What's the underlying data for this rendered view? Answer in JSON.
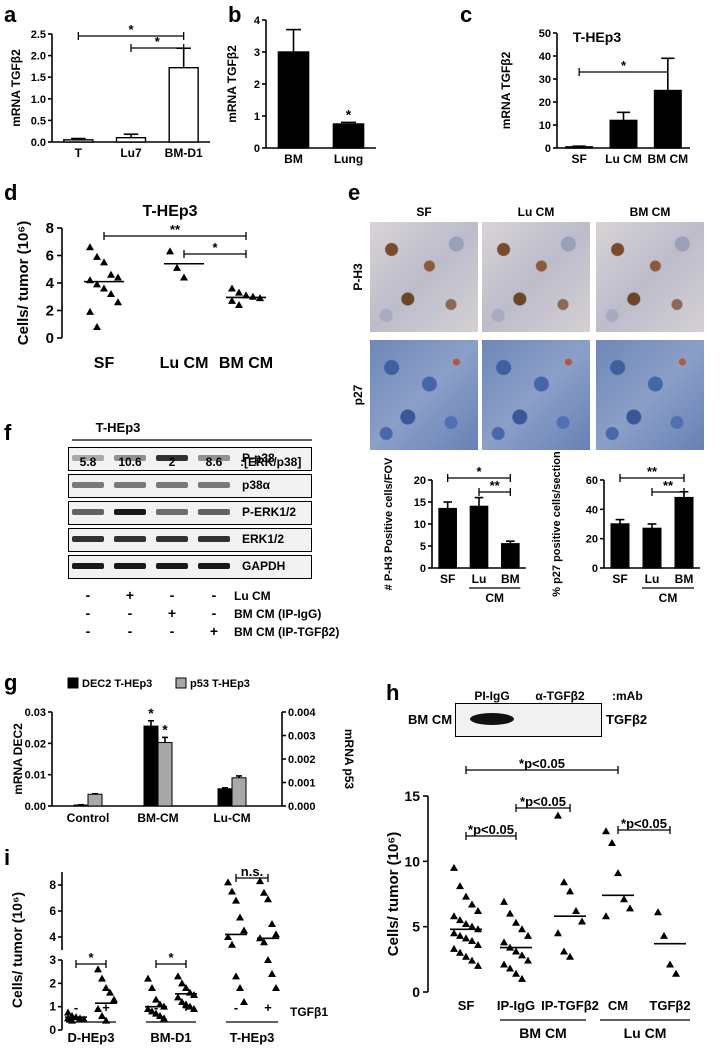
{
  "panels": {
    "a": {
      "letter": "a"
    },
    "b": {
      "letter": "b"
    },
    "c": {
      "letter": "c",
      "title": "T-HEp3"
    },
    "d": {
      "letter": "d",
      "title": "T-HEp3"
    },
    "e": {
      "letter": "e",
      "columns": [
        "SF",
        "Lu CM",
        "BM CM"
      ],
      "rows": [
        "P-H3",
        "p27"
      ]
    },
    "f": {
      "letter": "f",
      "title": "T-HEp3",
      "ratios": [
        "5.8",
        "10.6",
        "2",
        "8.6"
      ],
      "ratio_label": ":[ERK/p38]",
      "bands": [
        "P-p38",
        "p38α",
        "P-ERK1/2",
        "ERK1/2",
        "GAPDH"
      ],
      "conditions": [
        {
          "label": "Lu CM",
          "signs": [
            "-",
            "+",
            "-",
            "-"
          ]
        },
        {
          "label": "BM CM (IP-IgG)",
          "signs": [
            "-",
            "-",
            "+",
            "-"
          ]
        },
        {
          "label": "BM CM (IP-TGFβ2)",
          "signs": [
            "-",
            "-",
            "-",
            "+"
          ]
        }
      ]
    },
    "g": {
      "letter": "g"
    },
    "h": {
      "letter": "h",
      "blot_left": "BM CM",
      "blot_cols": [
        "PI-IgG",
        "α-TGFβ2",
        ":mAb"
      ],
      "blot_right": "TGFβ2",
      "sig": [
        "*p<0.05",
        "*p<0.05",
        "*p<0.05",
        "*p<0.05"
      ],
      "groups": [
        "BM CM",
        "Lu CM"
      ]
    },
    "i": {
      "letter": "i",
      "treatment": "TGFβ1",
      "groups": [
        "D-HEp3",
        "BM-D1",
        "T-HEp3"
      ],
      "sig": [
        "*",
        "*",
        "n.s."
      ]
    }
  },
  "chart_data": [
    {
      "id": "a",
      "type": "bar",
      "categories": [
        "T",
        "Lu7",
        "BM-D1"
      ],
      "values": [
        0.05,
        0.1,
        1.72
      ],
      "errors": [
        0.03,
        0.08,
        0.45
      ],
      "ylabel": "mRNA TGFβ2",
      "ylim": [
        0,
        2.5
      ],
      "yticks": [
        "0.0",
        "0.5",
        "1.0",
        "1.5",
        "2.0",
        "2.5"
      ],
      "bar_fill": "#ffffff",
      "sig": [
        "*",
        "*"
      ]
    },
    {
      "id": "b",
      "type": "bar",
      "categories": [
        "BM",
        "Lung"
      ],
      "values": [
        3.0,
        0.75
      ],
      "errors": [
        0.7,
        0.05
      ],
      "ylabel": "mRNA TGFβ2",
      "ylim": [
        0,
        4
      ],
      "yticks": [
        "0",
        "1",
        "2",
        "3",
        "4"
      ],
      "bar_fill": "#000000",
      "sig": [
        "*"
      ]
    },
    {
      "id": "c",
      "type": "bar",
      "categories": [
        "SF",
        "Lu CM",
        "BM CM"
      ],
      "values": [
        0.5,
        12,
        25
      ],
      "errors": [
        0.3,
        3.5,
        14
      ],
      "title": "T-HEp3",
      "ylabel": "mRNA TGFβ2",
      "ylim": [
        0,
        50
      ],
      "yticks": [
        "0",
        "10",
        "20",
        "30",
        "40",
        "50"
      ],
      "bar_fill": "#000000",
      "sig": [
        "*"
      ]
    },
    {
      "id": "d",
      "type": "scatter",
      "categories": [
        "SF",
        "Lu CM",
        "BM CM"
      ],
      "title": "T-HEp3",
      "ylabel": "Cells/ tumor (10⁶)",
      "ylim": [
        0,
        8
      ],
      "yticks": [
        "0",
        "2",
        "4",
        "6",
        "8"
      ],
      "means": [
        4.1,
        5.4,
        2.95
      ],
      "sig": [
        "**",
        "*"
      ],
      "points": [
        [
          6.6,
          5.9,
          5.5,
          4.6,
          4.4,
          4.2,
          3.9,
          3.6,
          3.2,
          2.6,
          1.9,
          0.8
        ],
        [
          6.3,
          5.1,
          4.4
        ],
        [
          3.6,
          3.3,
          3.1,
          3.0,
          2.9,
          2.7,
          2.4
        ]
      ]
    },
    {
      "id": "e1",
      "type": "bar",
      "categories": [
        "SF",
        "Lu",
        "BM"
      ],
      "group_label": "CM",
      "values": [
        13.5,
        14,
        5.5
      ],
      "errors": [
        1.5,
        2,
        0.6
      ],
      "ylabel": "# P-H3 Positive cells/FOV",
      "ylim": [
        0,
        20
      ],
      "yticks": [
        "0",
        "5",
        "10",
        "15",
        "20"
      ],
      "bar_fill": "#000000",
      "sig": [
        "*",
        "**"
      ]
    },
    {
      "id": "e2",
      "type": "bar",
      "categories": [
        "SF",
        "Lu",
        "BM"
      ],
      "group_label": "CM",
      "values": [
        30,
        27,
        48
      ],
      "errors": [
        3,
        3,
        4
      ],
      "ylabel": "% p27 positive cells/section",
      "ylim": [
        0,
        60
      ],
      "yticks": [
        "0",
        "20",
        "40",
        "60"
      ],
      "bar_fill": "#000000",
      "sig": [
        "**",
        "**"
      ]
    },
    {
      "id": "g",
      "type": "bar",
      "categories": [
        "Control",
        "BM-CM",
        "Lu-CM"
      ],
      "series": [
        {
          "name": "DEC2 T-HEp3",
          "values": [
            0.0003,
            0.0255,
            0.0055
          ],
          "errors": [
            0.0001,
            0.0017,
            0.0003
          ],
          "color": "#000000",
          "axis": "left"
        },
        {
          "name": "p53 T-HEp3",
          "values": [
            0.0005,
            0.0027,
            0.0012
          ],
          "errors": [
            2e-05,
            0.00022,
            8e-05
          ],
          "color": "#a8a8a8",
          "axis": "right"
        }
      ],
      "ylabel": "mRNA DEC2",
      "y2label": "mRNA p53",
      "ylim": [
        0,
        0.03
      ],
      "y2lim": [
        0,
        0.004
      ],
      "yticks": [
        "0.00",
        "0.01",
        "0.02",
        "0.03"
      ],
      "y2ticks": [
        "0.000",
        "0.001",
        "0.002",
        "0.003",
        "0.004"
      ],
      "sig": [
        "*",
        "*"
      ]
    },
    {
      "id": "h",
      "type": "scatter",
      "categories": [
        "SF",
        "IP-IgG",
        "IP-TGFβ2",
        "CM",
        "TGFβ2"
      ],
      "ylabel": "Cells/ tumor (10⁶)",
      "ylim": [
        0,
        15
      ],
      "yticks": [
        "0",
        "5",
        "10",
        "15"
      ],
      "means": [
        4.8,
        3.4,
        5.8,
        7.4,
        3.7
      ],
      "points": [
        [
          9.5,
          8.1,
          7.3,
          6.7,
          6.2,
          5.8,
          5.5,
          5.2,
          5.0,
          4.8,
          4.5,
          4.3,
          4.1,
          3.9,
          3.6,
          3.3,
          3.0,
          2.7,
          2.4,
          2.0
        ],
        [
          6.9,
          6.0,
          5.3,
          4.8,
          4.3,
          3.8,
          3.4,
          3.1,
          2.8,
          2.4,
          2.1,
          1.8,
          1.4,
          1.0
        ],
        [
          13.5,
          8.4,
          7.7,
          6.2,
          5.4,
          4.5,
          3.1,
          2.7
        ],
        [
          12.3,
          11.4,
          9.1,
          7.1,
          6.4,
          5.8
        ],
        [
          6.1,
          4.3,
          2.1,
          1.4
        ]
      ]
    },
    {
      "id": "i",
      "type": "scatter",
      "categories": [
        "-",
        "+",
        "-",
        "+",
        "-",
        "+"
      ],
      "ylabel": "Cells/ tumor (10⁶)",
      "yticks_lower": [
        "0",
        "1",
        "2",
        "3"
      ],
      "yticks_upper": [
        "4",
        "6",
        "8"
      ],
      "means": [
        0.55,
        1.15,
        1.0,
        1.55,
        4.2,
        3.9
      ],
      "points": [
        [
          0.75,
          0.6,
          0.55,
          0.5,
          0.45,
          0.5,
          0.4
        ],
        [
          2.6,
          2.2,
          1.8,
          1.6,
          1.3,
          0.9,
          0.6,
          0.4
        ],
        [
          2.2,
          1.8,
          1.3,
          1.1,
          1.0,
          0.9,
          0.8,
          0.7,
          0.6,
          0.5
        ],
        [
          2.3,
          2.0,
          1.8,
          1.6,
          1.5,
          1.4,
          1.2,
          1.1,
          1.0,
          0.9
        ],
        [
          8.2,
          7.5,
          6.8,
          5.5,
          4.5,
          4.0,
          3.4,
          2.3,
          1.8,
          1.2
        ],
        [
          8.3,
          7.4,
          6.9,
          5.0,
          4.2,
          3.9,
          3.6,
          3.0,
          2.4,
          1.8
        ]
      ]
    }
  ]
}
